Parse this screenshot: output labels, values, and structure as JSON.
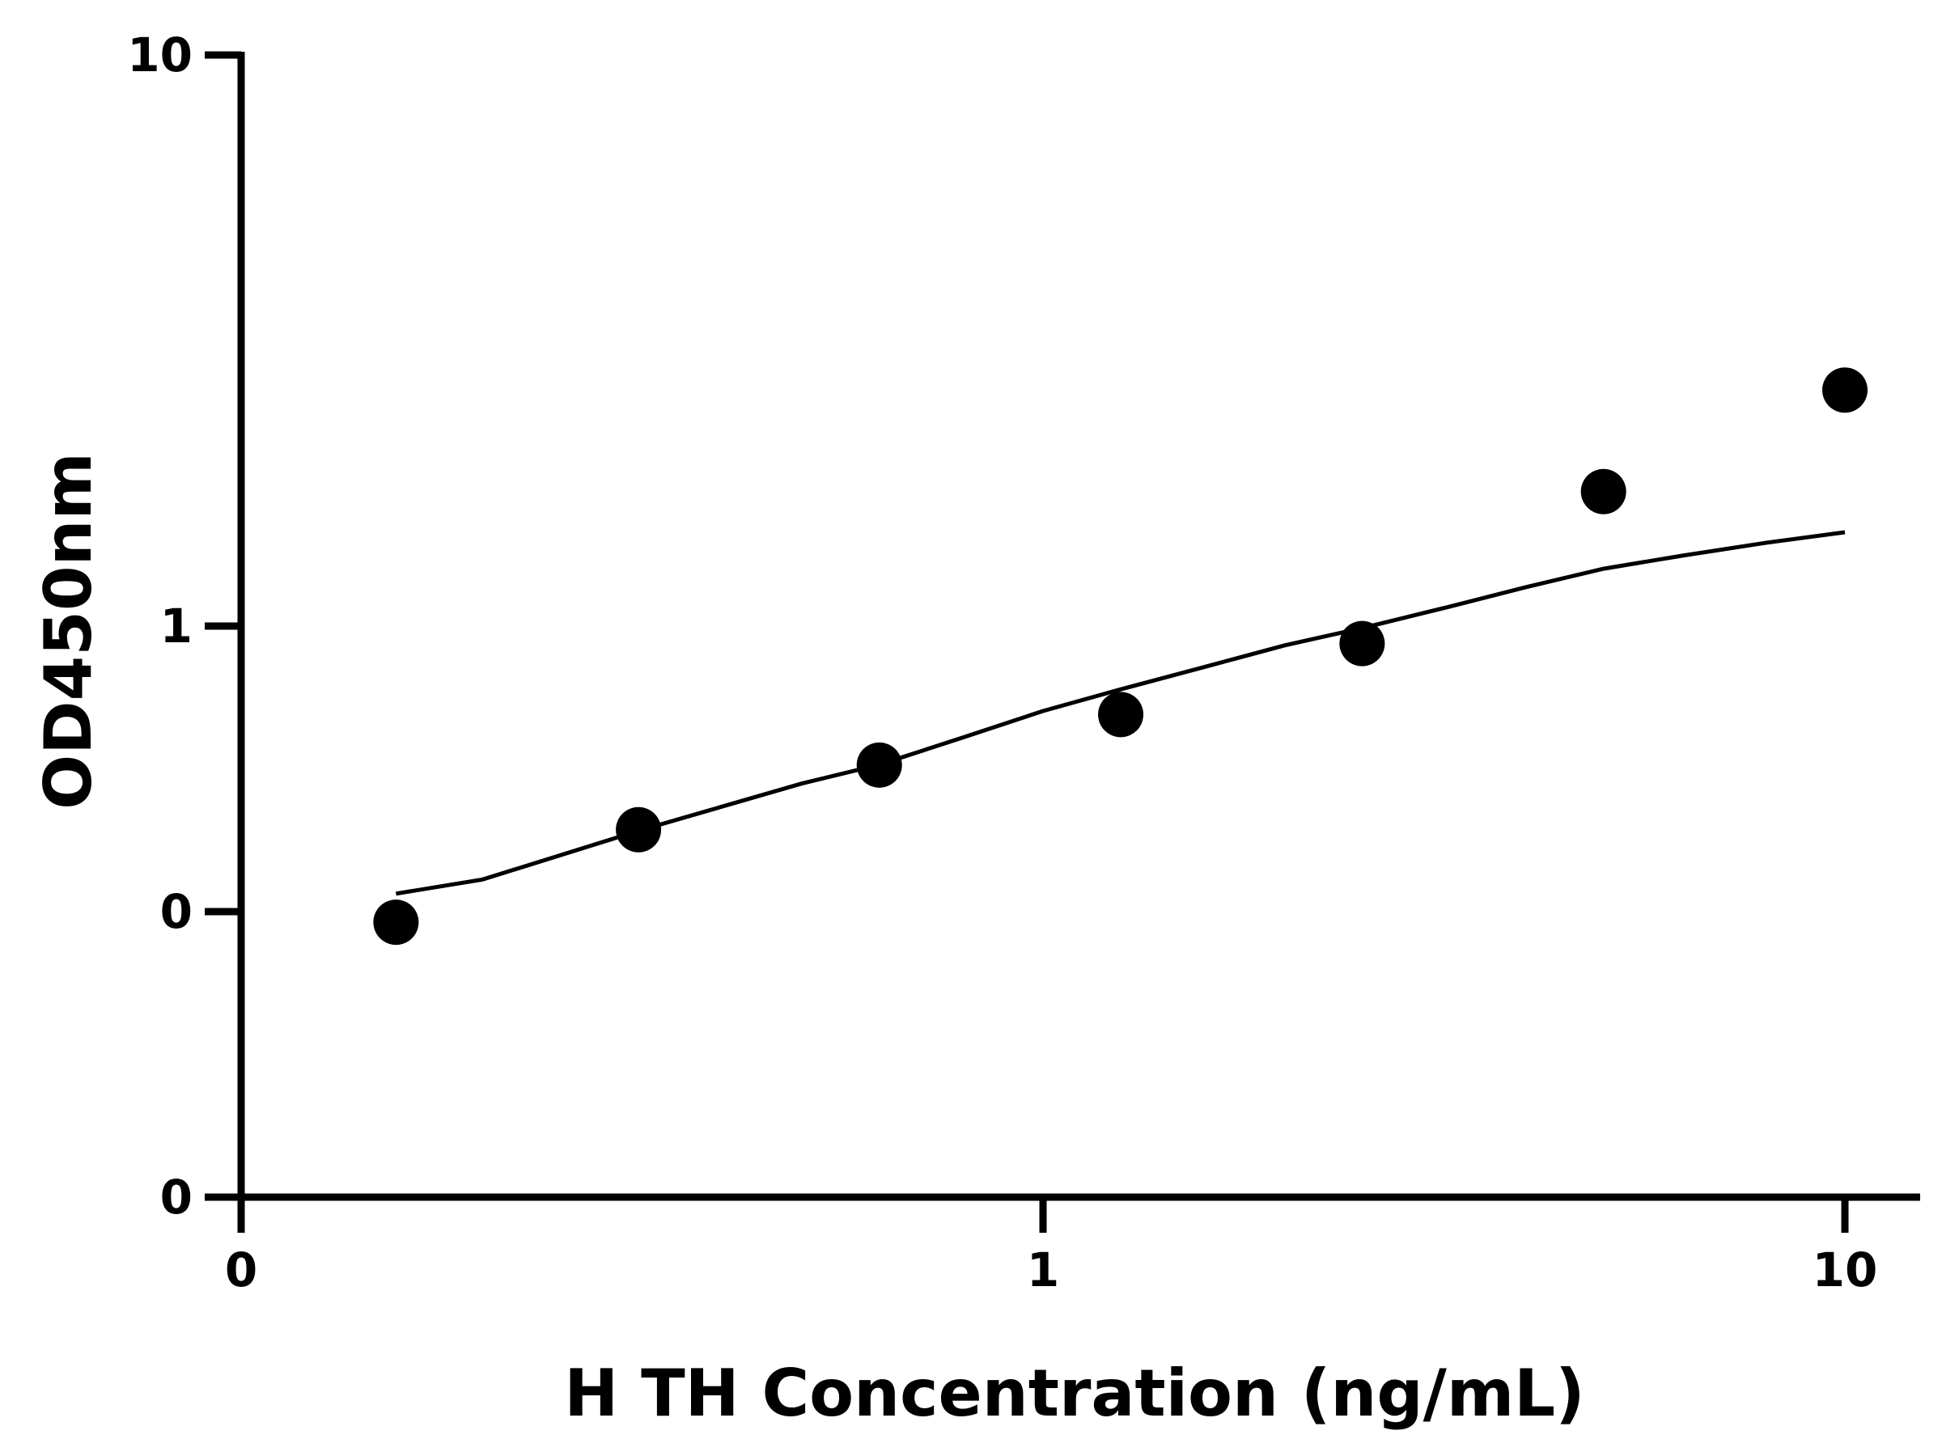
{
  "chart_data": {
    "type": "scatter",
    "title": "",
    "xlabel": "H TH Concentration (ng/mL)",
    "ylabel": "OD450nm",
    "x_scale": "log",
    "y_scale": "log",
    "xlim": [
      0.1,
      10
    ],
    "ylim": [
      0.1,
      10
    ],
    "x_ticks": [
      {
        "value": 0.1,
        "label": "0"
      },
      {
        "value": 1,
        "label": "1"
      },
      {
        "value": 10,
        "label": "10"
      }
    ],
    "y_ticks": [
      {
        "value": 0.1,
        "label": "0"
      },
      {
        "value": 0.3162,
        "label": "0"
      },
      {
        "value": 1,
        "label": "1"
      },
      {
        "value": 10,
        "label": "10"
      }
    ],
    "grid": false,
    "series": [
      {
        "x": [
          0.156,
          0.313,
          0.625,
          1.25,
          2.5,
          5,
          10
        ],
        "y": [
          0.303,
          0.44,
          0.571,
          0.7,
          0.932,
          1.72,
          2.59
        ]
      }
    ],
    "fit_curve": {
      "x": [
        0.156,
        0.2,
        0.313,
        0.5,
        0.625,
        0.8,
        1.0,
        1.25,
        1.6,
        2.0,
        2.5,
        3.2,
        4.0,
        5.0,
        6.3,
        8.0,
        10.0
      ],
      "y": [
        0.34,
        0.36,
        0.438,
        0.53,
        0.572,
        0.64,
        0.71,
        0.775,
        0.85,
        0.925,
        0.992,
        1.08,
        1.17,
        1.26,
        1.33,
        1.4,
        1.46
      ]
    },
    "colors": {
      "axis": "#000000",
      "marker": "#000000",
      "curve": "#000000"
    }
  }
}
